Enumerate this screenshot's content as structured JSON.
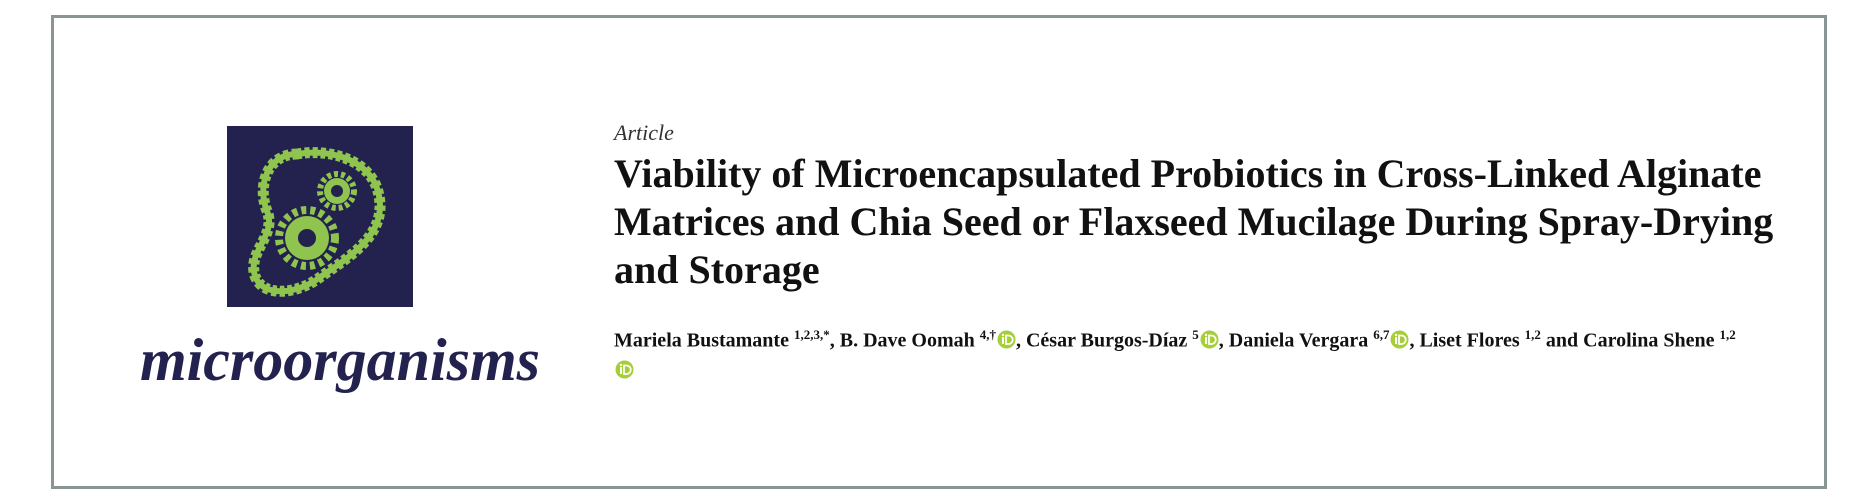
{
  "journal": "microorganisms",
  "article_type": "Article",
  "title": "Viability of Microencapsulated Probiotics in Cross-Linked Alginate Matrices and Chia Seed or Flaxseed Mucilage During Spray-Drying and Storage",
  "authors": [
    {
      "name": "Mariela Bustamante",
      "affiliations": "1,2,3,*",
      "orcid": false
    },
    {
      "name": "B. Dave Oomah",
      "affiliations": "4,†",
      "orcid": true
    },
    {
      "name": "César Burgos-Díaz",
      "affiliations": "5",
      "orcid": true
    },
    {
      "name": "Daniela Vergara",
      "affiliations": "6,7",
      "orcid": true
    },
    {
      "name": "Liset Flores",
      "affiliations": "1,2",
      "orcid": false
    },
    {
      "name": "Carolina Shene",
      "affiliations": "1,2",
      "orcid": true
    }
  ],
  "separator": ",",
  "conjunction": "and"
}
